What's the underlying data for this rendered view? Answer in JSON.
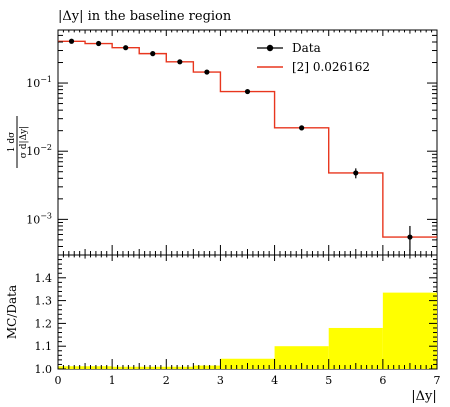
{
  "title": "|Δy| in the baseline region",
  "upper_ylabel_top": "1  dσ",
  "upper_ylabel_bottom": "σ d|Δy|",
  "lower_ylabel": "MC/Data",
  "xlabel": "|Δy|",
  "colors": {
    "data": "#000000",
    "mc": "#e8361e",
    "ratio_band": "#ffff00"
  },
  "chart_data": [
    {
      "type": "line",
      "title": "|Δy| in the baseline region",
      "xlabel": "",
      "ylabel": "1/σ dσ/d|Δy|",
      "yscale": "log",
      "xlim": [
        0,
        7
      ],
      "ylim": [
        0.0003,
        0.6
      ],
      "legend_position": "top-right",
      "legend": [
        "Data",
        "[2] 0.026162"
      ],
      "x_ticks": [],
      "y_ticks": [
        {
          "value": 0.1,
          "label": "10",
          "exp": "−1"
        },
        {
          "value": 0.01,
          "label": "10",
          "exp": "−2"
        },
        {
          "value": 0.001,
          "label": "10",
          "exp": "−3"
        }
      ],
      "bin_edges": [
        0,
        0.5,
        1,
        1.5,
        2,
        2.5,
        3,
        4,
        5,
        6,
        7
      ],
      "series": [
        {
          "name": "Data",
          "style": "markers",
          "x": [
            0.25,
            0.75,
            1.25,
            1.75,
            2.25,
            2.75,
            3.5,
            4.5,
            5.5,
            6.5
          ],
          "y": [
            0.41,
            0.38,
            0.33,
            0.27,
            0.205,
            0.145,
            0.075,
            0.022,
            0.0048,
            0.00055
          ],
          "yerr": [
            0.01,
            0.01,
            0.009,
            0.008,
            0.006,
            0.005,
            0.002,
            0.0008,
            0.0008,
            0.00025
          ]
        },
        {
          "name": "[2] 0.026162",
          "style": "step",
          "values": [
            0.41,
            0.38,
            0.33,
            0.27,
            0.205,
            0.145,
            0.075,
            0.022,
            0.0048,
            0.00055
          ]
        }
      ]
    },
    {
      "type": "area",
      "xlabel": "|Δy|",
      "ylabel": "MC/Data",
      "xlim": [
        0,
        7
      ],
      "ylim": [
        1.0,
        1.5
      ],
      "x_ticks": [
        "0",
        "1",
        "2",
        "3",
        "4",
        "5",
        "6",
        "7"
      ],
      "y_ticks": [
        "1.0",
        "1.1",
        "1.2",
        "1.3",
        "1.4"
      ],
      "bin_edges": [
        0,
        0.5,
        1,
        1.5,
        2,
        2.5,
        3,
        4,
        5,
        6,
        7
      ],
      "series": [
        {
          "name": "",
          "values": [
            1.012,
            1.012,
            1.01,
            1.01,
            1.01,
            1.015,
            1.045,
            1.1,
            1.18,
            1.335
          ]
        }
      ]
    }
  ]
}
